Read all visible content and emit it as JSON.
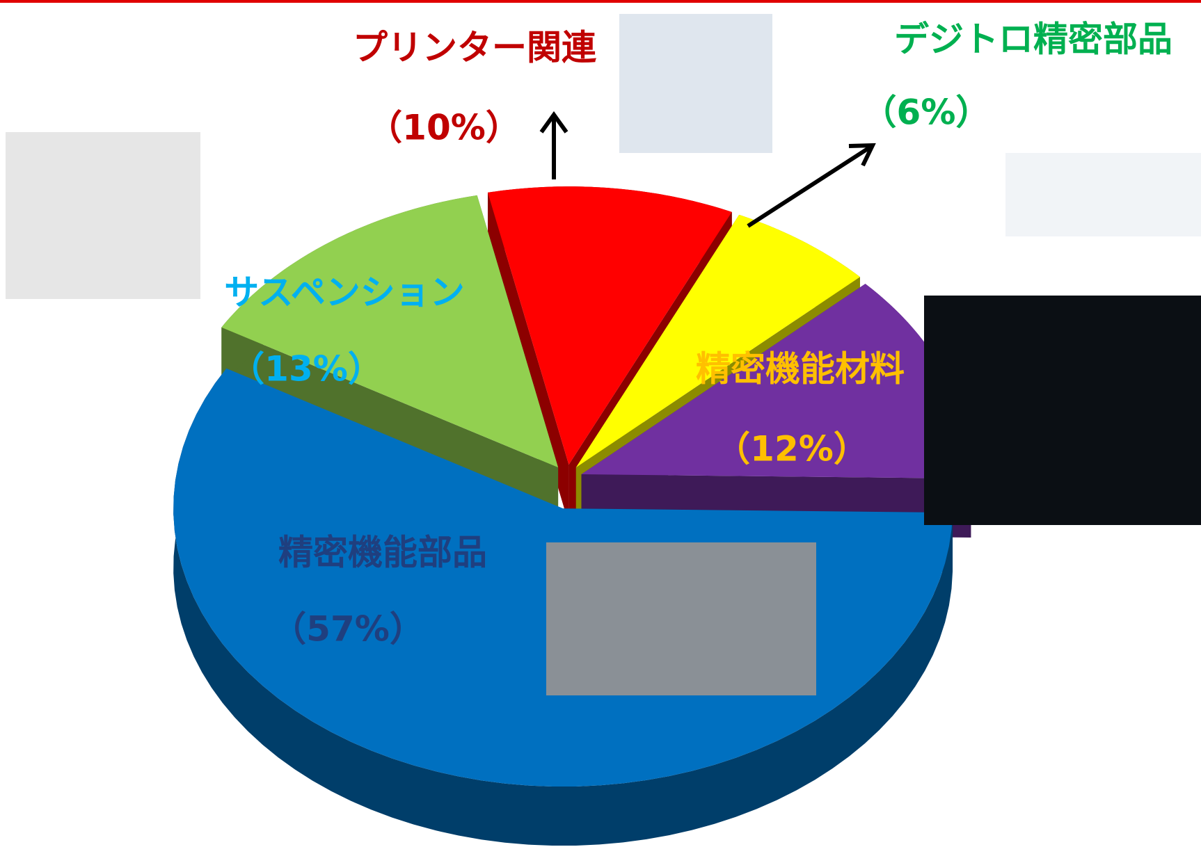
{
  "chart_data": {
    "type": "pie",
    "categories": [
      "プリンター関連",
      "デジトロ精密部品",
      "精密機能材料",
      "精密機能部品",
      "サスペンション"
    ],
    "values": [
      10,
      6,
      12,
      57,
      13
    ],
    "value_labels": [
      "（10%）",
      "（6%）",
      "（12%）",
      "（57%）",
      "（13%）"
    ],
    "colors": [
      "#ff0000",
      "#ffff00",
      "#7030a0",
      "#0070c0",
      "#92d050"
    ],
    "label_colors": [
      "#c00000",
      "#00b050",
      "#ffc000",
      "#1f3f7f",
      "#00b0f0"
    ]
  }
}
